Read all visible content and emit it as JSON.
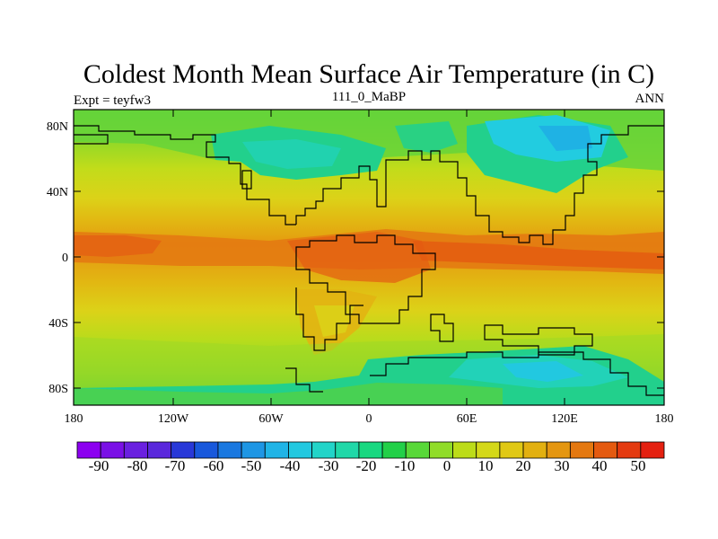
{
  "map": {
    "title": "Coldest Month Mean Surface Air Temperature (in C)",
    "left_label": "Expt = teyfw3",
    "center_label": "111_0_MaBP",
    "right_label": "ANN",
    "lat_ticks": [
      "80N",
      "40N",
      "0",
      "40S",
      "80S"
    ],
    "lon_ticks": [
      "180",
      "120W",
      "60W",
      "0",
      "60E",
      "120E",
      "180"
    ],
    "colorbar": {
      "tick_labels": [
        "-90",
        "-80",
        "-70",
        "-60",
        "-50",
        "-40",
        "-30",
        "-20",
        "-10",
        "0",
        "10",
        "20",
        "30",
        "40",
        "50"
      ],
      "colors": [
        "#8c00f0",
        "#7a10e6",
        "#6a20e0",
        "#5a28dc",
        "#2838d8",
        "#1858dc",
        "#1a78e0",
        "#1e96e4",
        "#20b4e6",
        "#22c8e0",
        "#22d4c8",
        "#20d8a8",
        "#18d880",
        "#22d048",
        "#58d838",
        "#90dc28",
        "#bcdc18",
        "#d4d818",
        "#e0c814",
        "#e2b010",
        "#e49610",
        "#e47810",
        "#e45a10",
        "#e43a10",
        "#e42010"
      ]
    }
  }
}
